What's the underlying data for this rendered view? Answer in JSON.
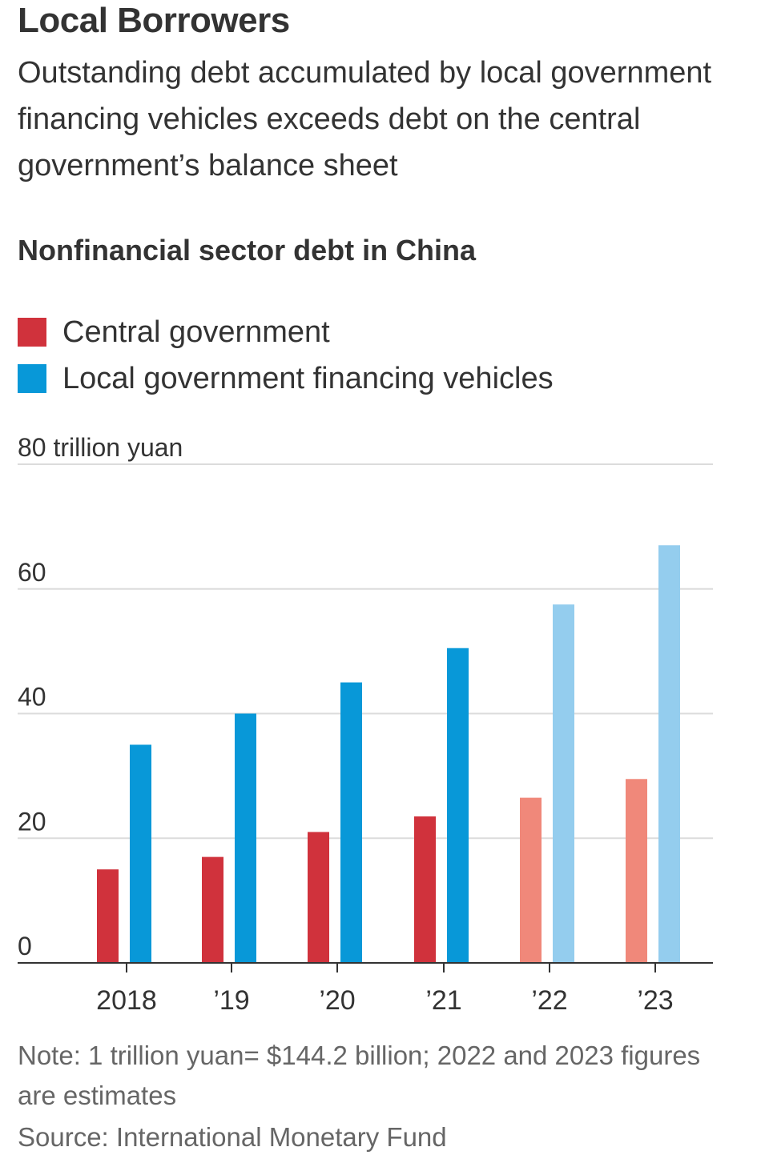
{
  "headline": "Local Borrowers",
  "dek": "Outstanding debt accumulated by local government financing vehicles exceeds debt on the central government’s balance sheet",
  "colors": {
    "central": "#d0323c",
    "central_estimate": "#f0887a",
    "lgfv": "#0898d8",
    "lgfv_estimate": "#94cdee",
    "grid": "#dcdcdc",
    "axis": "#333333"
  },
  "chart_data": {
    "type": "bar",
    "title": "Nonfinancial sector debt in China",
    "unit_label": "80 trillion yuan",
    "ylim": [
      0,
      80
    ],
    "yticks": [
      0,
      20,
      40,
      60,
      80
    ],
    "ytick_labels": [
      "0",
      "20",
      "40",
      "60",
      "80 trillion yuan"
    ],
    "categories": [
      "2018",
      "’19",
      "’20",
      "’21",
      "’22",
      "’23"
    ],
    "estimate_categories": [
      "’22",
      "’23"
    ],
    "series": [
      {
        "name": "Central government",
        "values": [
          15,
          17,
          21,
          23.5,
          26.5,
          29.5
        ]
      },
      {
        "name": "Local government financing vehicles",
        "values": [
          35,
          40,
          45,
          50.5,
          57.5,
          67
        ]
      }
    ]
  },
  "legend": {
    "items": [
      {
        "label": "Central government"
      },
      {
        "label": "Local government financing vehicles"
      }
    ]
  },
  "note": "Note: 1 trillion yuan= $144.2 billion; 2022 and 2023 figures are estimates",
  "source": "Source: International Monetary Fund"
}
